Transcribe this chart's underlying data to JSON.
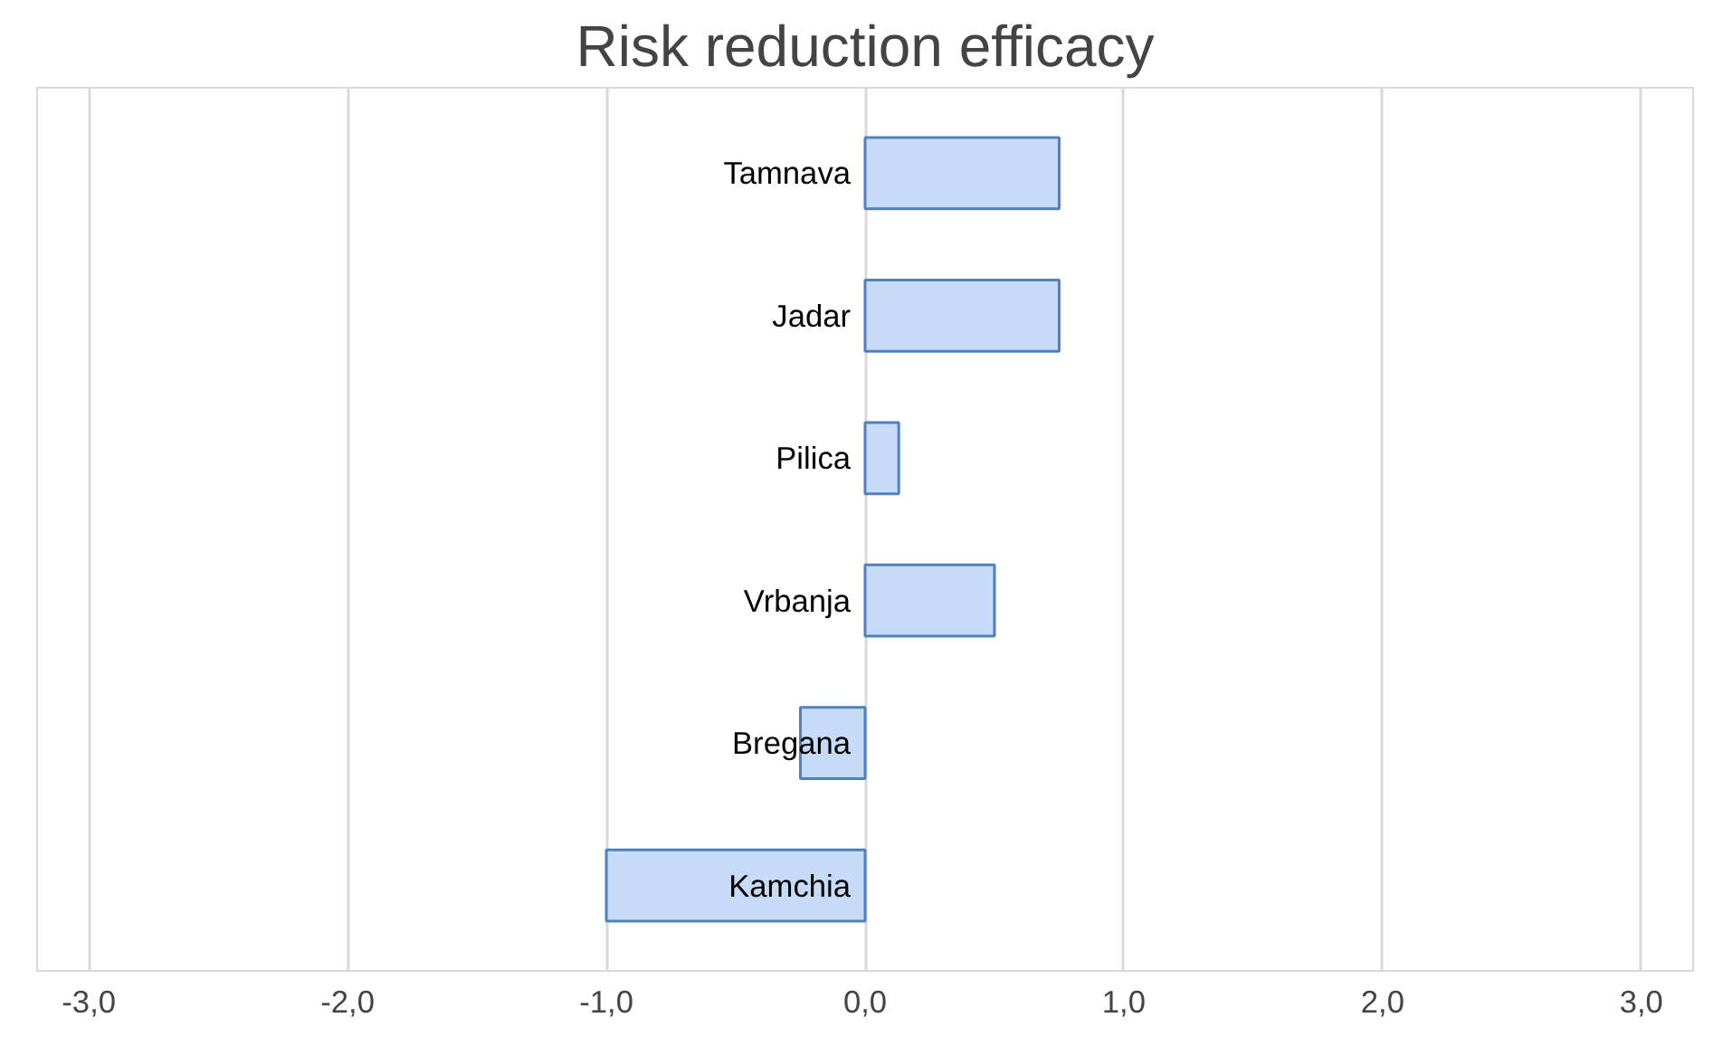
{
  "chart_data": {
    "type": "bar",
    "orientation": "horizontal",
    "title": "Risk reduction efficacy",
    "categories": [
      "Tamnava",
      "Jadar",
      "Pilica",
      "Vrbanja",
      "Bregana",
      "Kamchia"
    ],
    "values": [
      0.75,
      0.75,
      0.13,
      0.5,
      -0.25,
      -1.0
    ],
    "color": "#c6dbf7",
    "xlim": [
      -3.2,
      3.2
    ],
    "xticks": [
      {
        "value": -3,
        "label": "-3,0"
      },
      {
        "value": -2,
        "label": "-2,0"
      },
      {
        "value": -1,
        "label": "-1,0"
      },
      {
        "value": 0,
        "label": "0,0"
      },
      {
        "value": 1,
        "label": "1,0"
      },
      {
        "value": 2,
        "label": "2,0"
      },
      {
        "value": 3,
        "label": "3,0"
      }
    ],
    "grid": "x"
  }
}
